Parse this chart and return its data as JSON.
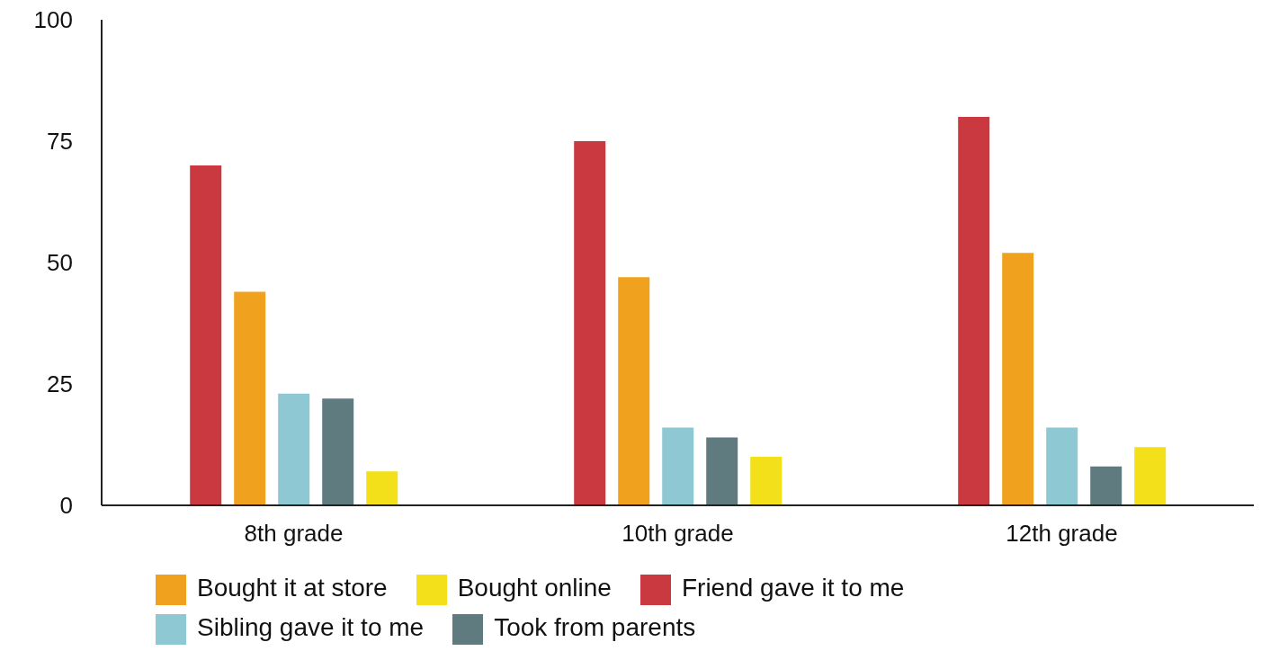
{
  "chart_data": {
    "type": "bar",
    "categories": [
      "8th grade",
      "10th grade",
      "12th grade"
    ],
    "series": [
      {
        "name": "Friend gave it to me",
        "color": "#c9393f",
        "values": [
          70,
          75,
          80
        ]
      },
      {
        "name": "Bought it at store",
        "color": "#f0a21f",
        "values": [
          44,
          47,
          52
        ]
      },
      {
        "name": "Sibling gave it to me",
        "color": "#8ec8d3",
        "values": [
          23,
          16,
          16
        ]
      },
      {
        "name": "Took from parents",
        "color": "#5f7b80",
        "values": [
          22,
          14,
          8
        ]
      },
      {
        "name": "Bought online",
        "color": "#f3e01a",
        "values": [
          7,
          10,
          12
        ]
      }
    ],
    "ylim": [
      0,
      100
    ],
    "yticks": [
      0,
      25,
      50,
      75,
      100
    ],
    "grid": false,
    "legend": "bottom"
  }
}
